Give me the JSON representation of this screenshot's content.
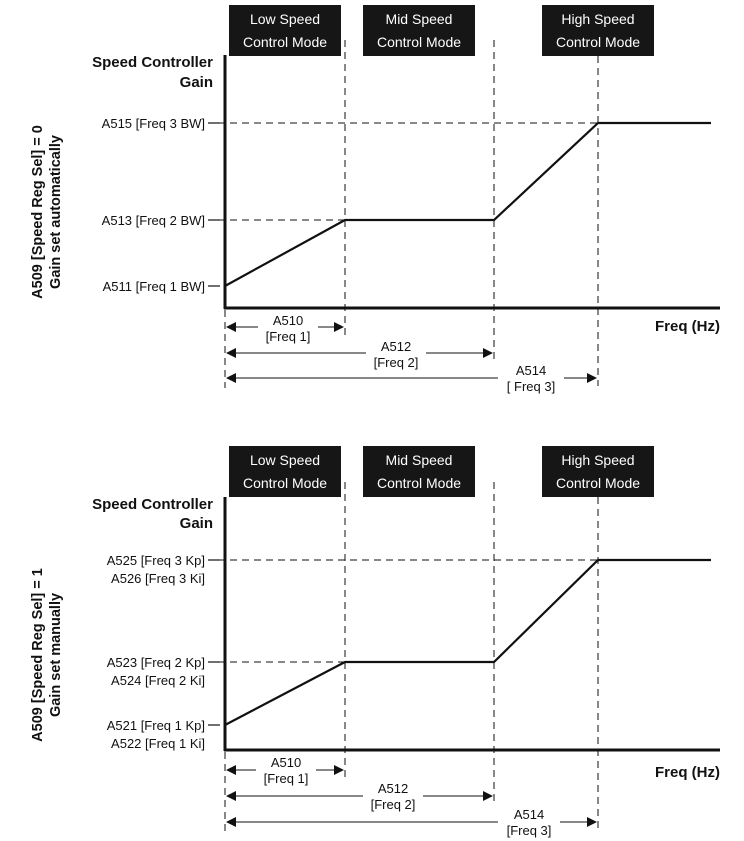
{
  "panels": [
    {
      "side_label_1": "A509 [Speed Reg Sel] = 0",
      "side_label_2": "Gain set automatically",
      "y_title_1": "Speed Controller",
      "y_title_2": "Gain",
      "x_title": "Freq (Hz)",
      "modes": [
        {
          "line1": "Low Speed",
          "line2": "Control Mode"
        },
        {
          "line1": "Mid Speed",
          "line2": "Control Mode"
        },
        {
          "line1": "High Speed",
          "line2": "Control Mode"
        }
      ],
      "levels": [
        {
          "lines": [
            "A515 [Freq 3 BW]"
          ]
        },
        {
          "lines": [
            "A513 [Freq 2 BW]"
          ]
        },
        {
          "lines": [
            "A511 [Freq 1 BW]"
          ]
        }
      ],
      "freqs": [
        {
          "code": "A510",
          "name": "[Freq 1]"
        },
        {
          "code": "A512",
          "name": "[Freq 2]"
        },
        {
          "code": "A514",
          "name": "[ Freq 3]"
        }
      ]
    },
    {
      "side_label_1": "A509 [Speed Reg Sel] = 1",
      "side_label_2": "Gain set manually",
      "y_title_1": "Speed Controller",
      "y_title_2": "Gain",
      "x_title": "Freq (Hz)",
      "modes": [
        {
          "line1": "Low Speed",
          "line2": "Control Mode"
        },
        {
          "line1": "Mid Speed",
          "line2": "Control Mode"
        },
        {
          "line1": "High Speed",
          "line2": "Control Mode"
        }
      ],
      "levels": [
        {
          "lines": [
            "A525 [Freq 3 Kp]",
            "A526 [Freq 3 Ki]"
          ]
        },
        {
          "lines": [
            "A523 [Freq 2 Kp]",
            "A524 [Freq 2 Ki]"
          ]
        },
        {
          "lines": [
            "A521 [Freq 1 Kp]",
            "A522 [Freq 1 Ki]"
          ]
        }
      ],
      "freqs": [
        {
          "code": "A510",
          "name": "[Freq 1]"
        },
        {
          "code": "A512",
          "name": "[Freq 2]"
        },
        {
          "code": "A514",
          "name": "[Freq 3]"
        }
      ]
    }
  ]
}
